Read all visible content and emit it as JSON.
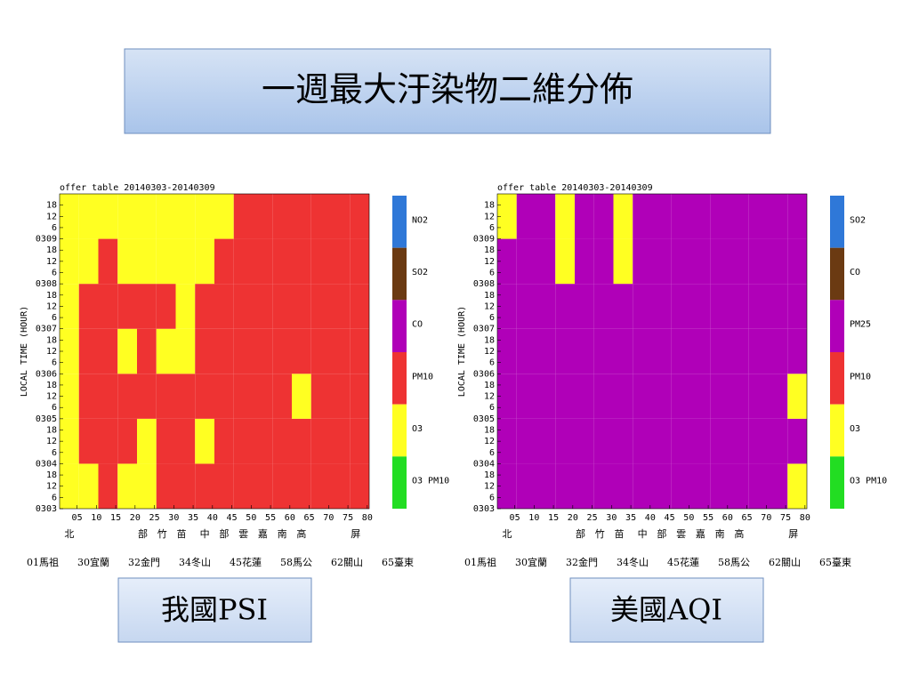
{
  "slide": {
    "title": "一週最大汙染物二維分佈"
  },
  "captions": [
    "我國PSI",
    "美國AQI"
  ],
  "chart_data": [
    {
      "type": "heatmap",
      "title": "offer table 20140303-20140309",
      "y_label": "LOCAL TIME (HOUR)",
      "xlim": [
        0.5,
        80.5
      ],
      "xticks": [
        {
          "value": 5,
          "label": "05"
        },
        10,
        15,
        20,
        25,
        30,
        35,
        40,
        45,
        50,
        55,
        60,
        65,
        70,
        75,
        80
      ],
      "ylim": [
        0,
        168
      ],
      "yticks": [
        {
          "value": 0,
          "label": "0303"
        },
        6,
        12,
        18,
        {
          "value": 24,
          "label": "0304"
        },
        {
          "value": 30,
          "label": "6"
        },
        {
          "value": 36,
          "label": "12"
        },
        {
          "value": 42,
          "label": "18"
        },
        {
          "value": 48,
          "label": "0305"
        },
        {
          "value": 54,
          "label": "6"
        },
        {
          "value": 60,
          "label": "12"
        },
        {
          "value": 66,
          "label": "18"
        },
        {
          "value": 72,
          "label": "0306"
        },
        {
          "value": 78,
          "label": "6"
        },
        {
          "value": 84,
          "label": "12"
        },
        {
          "value": 90,
          "label": "18"
        },
        {
          "value": 96,
          "label": "0307"
        },
        {
          "value": 102,
          "label": "6"
        },
        {
          "value": 108,
          "label": "12"
        },
        {
          "value": 114,
          "label": "18"
        },
        {
          "value": 120,
          "label": "0308"
        },
        {
          "value": 126,
          "label": "6"
        },
        {
          "value": 132,
          "label": "12"
        },
        {
          "value": 138,
          "label": "18"
        },
        {
          "value": 144,
          "label": "0309"
        },
        {
          "value": 150,
          "label": "6"
        },
        {
          "value": 156,
          "label": "12"
        },
        {
          "value": 162,
          "label": "18"
        }
      ],
      "legend": [
        {
          "name": "NO2",
          "color": "#2f78d8"
        },
        {
          "name": "SO2",
          "color": "#6b3a12"
        },
        {
          "name": "CO",
          "color": "#b000b8"
        },
        {
          "name": "PM10",
          "color": "#ee3333"
        },
        {
          "name": "O3",
          "color": "#ffff22"
        },
        {
          "name": "O3 PM10",
          "color": "#22dd22"
        }
      ],
      "matrix": [
        [
          4,
          4,
          3,
          4,
          4,
          3,
          3,
          3,
          3,
          3,
          3,
          3,
          3,
          3,
          3,
          3
        ],
        [
          4,
          3,
          3,
          3,
          4,
          3,
          3,
          4,
          3,
          3,
          3,
          3,
          3,
          3,
          3,
          3
        ],
        [
          4,
          3,
          3,
          3,
          3,
          3,
          3,
          3,
          3,
          3,
          3,
          3,
          4,
          3,
          3,
          3
        ],
        [
          4,
          3,
          3,
          4,
          3,
          4,
          4,
          3,
          3,
          3,
          3,
          3,
          3,
          3,
          3,
          3
        ],
        [
          4,
          3,
          3,
          3,
          3,
          3,
          4,
          3,
          3,
          3,
          3,
          3,
          3,
          3,
          3,
          3
        ],
        [
          4,
          4,
          3,
          4,
          4,
          4,
          4,
          4,
          3,
          3,
          3,
          3,
          3,
          3,
          3,
          3
        ],
        [
          4,
          4,
          4,
          4,
          4,
          4,
          4,
          4,
          4,
          3,
          3,
          3,
          3,
          3,
          3,
          3
        ]
      ],
      "regions": [
        "北",
        "部",
        "竹",
        "苗",
        "中",
        "部",
        "雲",
        "嘉",
        "南",
        "高",
        "屏"
      ],
      "stations": [
        "01馬祖",
        "30宜蘭",
        "32金門",
        "34冬山",
        "45花蓮",
        "58馬公",
        "62關山",
        "65臺東"
      ]
    },
    {
      "type": "heatmap",
      "title": "offer table 20140303-20140309",
      "y_label": "LOCAL TIME (HOUR)",
      "xlim": [
        0.5,
        80.5
      ],
      "xticks": [
        {
          "value": 5,
          "label": "05"
        },
        10,
        15,
        20,
        25,
        30,
        35,
        40,
        45,
        50,
        55,
        60,
        65,
        70,
        75,
        80
      ],
      "ylim": [
        0,
        168
      ],
      "yticks": [
        {
          "value": 0,
          "label": "0303"
        },
        6,
        12,
        18,
        {
          "value": 24,
          "label": "0304"
        },
        {
          "value": 30,
          "label": "6"
        },
        {
          "value": 36,
          "label": "12"
        },
        {
          "value": 42,
          "label": "18"
        },
        {
          "value": 48,
          "label": "0305"
        },
        {
          "value": 54,
          "label": "6"
        },
        {
          "value": 60,
          "label": "12"
        },
        {
          "value": 66,
          "label": "18"
        },
        {
          "value": 72,
          "label": "0306"
        },
        {
          "value": 78,
          "label": "6"
        },
        {
          "value": 84,
          "label": "12"
        },
        {
          "value": 90,
          "label": "18"
        },
        {
          "value": 96,
          "label": "0307"
        },
        {
          "value": 102,
          "label": "6"
        },
        {
          "value": 108,
          "label": "12"
        },
        {
          "value": 114,
          "label": "18"
        },
        {
          "value": 120,
          "label": "0308"
        },
        {
          "value": 126,
          "label": "6"
        },
        {
          "value": 132,
          "label": "12"
        },
        {
          "value": 138,
          "label": "18"
        },
        {
          "value": 144,
          "label": "0309"
        },
        {
          "value": 150,
          "label": "6"
        },
        {
          "value": 156,
          "label": "12"
        },
        {
          "value": 162,
          "label": "18"
        }
      ],
      "legend": [
        {
          "name": "SO2",
          "color": "#2f78d8"
        },
        {
          "name": "CO",
          "color": "#6b3a12"
        },
        {
          "name": "PM25",
          "color": "#b000b8"
        },
        {
          "name": "PM10",
          "color": "#ee3333"
        },
        {
          "name": "O3",
          "color": "#ffff22"
        },
        {
          "name": "O3 PM10",
          "color": "#22dd22"
        }
      ],
      "matrix": [
        [
          2,
          2,
          2,
          2,
          2,
          2,
          2,
          2,
          2,
          2,
          2,
          2,
          2,
          2,
          2,
          4
        ],
        [
          2,
          2,
          2,
          2,
          2,
          2,
          2,
          2,
          2,
          2,
          2,
          2,
          2,
          2,
          2,
          2
        ],
        [
          2,
          2,
          2,
          2,
          2,
          2,
          2,
          2,
          2,
          2,
          2,
          2,
          2,
          2,
          2,
          4
        ],
        [
          2,
          2,
          2,
          2,
          2,
          2,
          2,
          2,
          2,
          2,
          2,
          2,
          2,
          2,
          2,
          2
        ],
        [
          2,
          2,
          2,
          2,
          2,
          2,
          2,
          2,
          2,
          2,
          2,
          2,
          2,
          2,
          2,
          2
        ],
        [
          2,
          2,
          2,
          4,
          2,
          2,
          4,
          2,
          2,
          2,
          2,
          2,
          2,
          2,
          2,
          2
        ],
        [
          4,
          2,
          2,
          4,
          2,
          2,
          4,
          2,
          2,
          2,
          2,
          2,
          2,
          2,
          2,
          2
        ]
      ],
      "regions": [
        "北",
        "部",
        "竹",
        "苗",
        "中",
        "部",
        "雲",
        "嘉",
        "南",
        "高",
        "屏"
      ],
      "stations": [
        "01馬祖",
        "30宜蘭",
        "32金門",
        "34冬山",
        "45花蓮",
        "58馬公",
        "62關山",
        "65臺東"
      ]
    }
  ]
}
